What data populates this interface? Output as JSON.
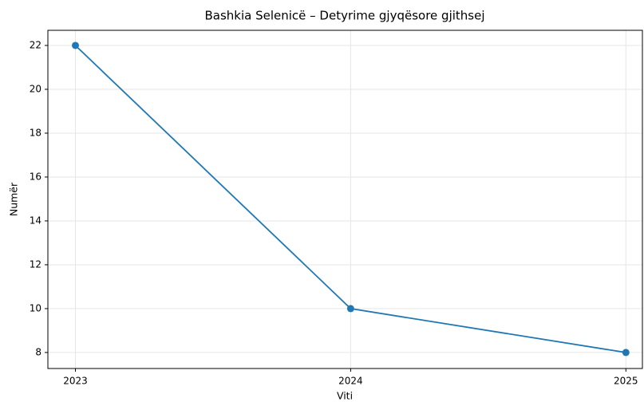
{
  "chart_data": {
    "type": "line",
    "title": "Bashkia Selenicë – Detyrime gjyqësore gjithsej",
    "x": [
      2023,
      2024,
      2025
    ],
    "series": [
      {
        "name": "Detyrime gjyqësore gjithsej",
        "color": "#1f77b4",
        "values": [
          22,
          10,
          8
        ]
      }
    ],
    "xlabel": "Viti",
    "ylabel": "Numër",
    "xlim": [
      2022.9,
      2025.06
    ],
    "xticks": [
      2023,
      2024,
      2025
    ],
    "ylim": [
      7.27,
      22.69
    ],
    "yticks": [
      8,
      10,
      12,
      14,
      16,
      18,
      20,
      22
    ],
    "grid": true
  }
}
